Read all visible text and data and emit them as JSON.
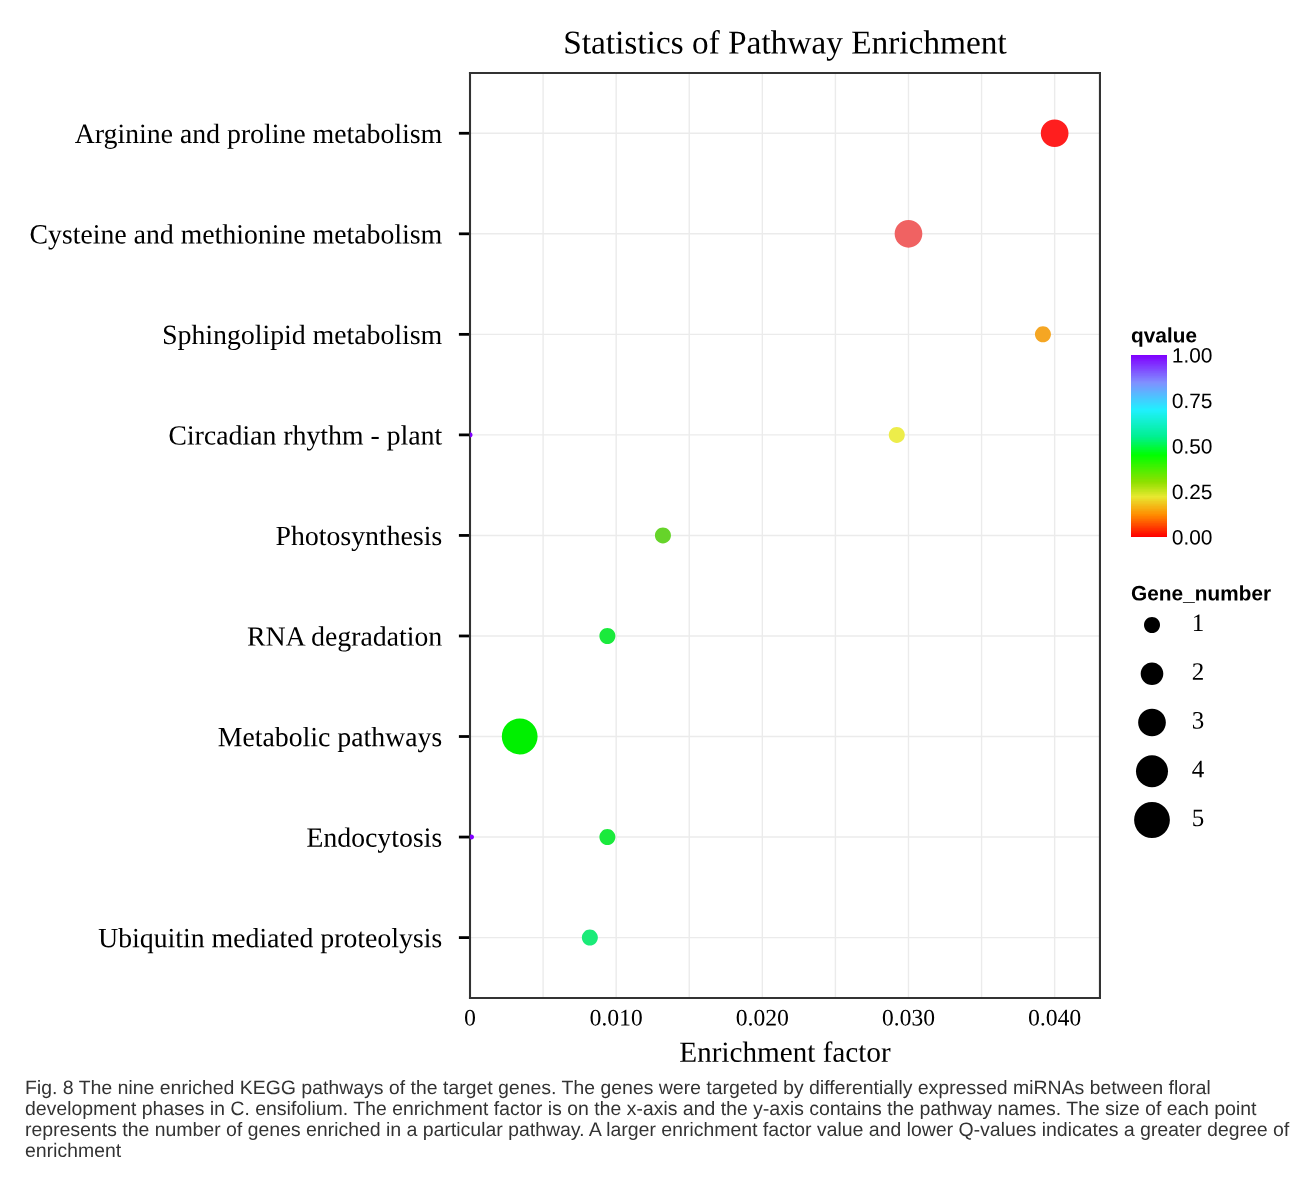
{
  "chart_data": {
    "type": "bubble",
    "orientation": "horizontal",
    "title": "Statistics of Pathway Enrichment",
    "xlabel": "Enrichment factor",
    "clabel": "qvalue",
    "legend_title": "Gene_number",
    "categories": [
      "Arginine and proline metabolism",
      "Cysteine and methionine metabolism",
      "Sphingolipid metabolism",
      "Circadian rhythm - plant",
      "Photosynthesis",
      "RNA degradation",
      "Metabolic pathways",
      "Endocytosis",
      "Ubiquitin mediated proteolysis"
    ],
    "series": [
      {
        "values": [
          0.04,
          0.03,
          0.0392,
          0.0292,
          0.0132,
          0.0094,
          0.0034,
          0.0094,
          0.0082
        ],
        "sizes": [
          3,
          3,
          1,
          1,
          1,
          1,
          5,
          1,
          1
        ],
        "colors": [
          "#ff1e1e",
          "#f06262",
          "#f5a623",
          "#eded4a",
          "#66d42a",
          "#1aea3c",
          "#00f000",
          "#1aea3c",
          "#1aeb78"
        ]
      },
      {
        "values": [
          null,
          null,
          null,
          0.0,
          null,
          null,
          null,
          0.0001,
          null
        ],
        "sizes": [
          null,
          null,
          null,
          0.1,
          null,
          null,
          null,
          0.1,
          null
        ],
        "colors": [
          null,
          null,
          null,
          "#8000ff",
          null,
          null,
          null,
          "#8000ff",
          null
        ]
      }
    ],
    "size_legend": [
      1,
      2,
      3,
      4,
      5
    ],
    "xlim": [
      0,
      0.0431
    ],
    "xticks": [
      0,
      {
        "value": 0.005,
        "label": null
      },
      {
        "value": 0.01,
        "label": "0.010"
      },
      {
        "value": 0.015,
        "label": null
      },
      {
        "value": 0.02,
        "label": "0.020"
      },
      {
        "value": 0.025,
        "label": null
      },
      {
        "value": 0.03,
        "label": "0.030"
      },
      {
        "value": 0.035,
        "label": null
      },
      {
        "value": 0.04,
        "label": "0.040"
      }
    ],
    "clim": [
      0,
      1
    ],
    "cticks": [
      {
        "value": 0,
        "label": "0.00"
      },
      {
        "value": 0.25,
        "label": "0.25"
      },
      {
        "value": 0.5,
        "label": "0.50"
      },
      {
        "value": 0.75,
        "label": "0.75"
      },
      {
        "value": 1,
        "label": "1.00"
      }
    ],
    "grid": true,
    "annotations": [
      "Fig. 8 The nine enriched KEGG pathways of the target genes. The genes were targeted by differentially expressed miRNAs between floral development phases in C. ensifolium. The enrichment factor is on the x-axis and the y-axis contains the pathway names. The size of each point represents the number of genes enriched in a particular pathway. A larger enrichment factor value and lower Q-values indicates a greater degree of enrichment"
    ]
  }
}
